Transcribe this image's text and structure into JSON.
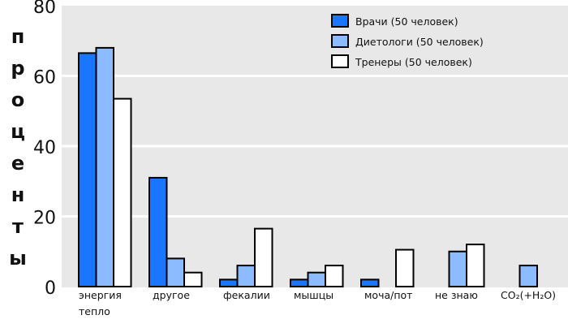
{
  "chart_data": {
    "type": "bar",
    "ylabel": "проценты",
    "ylim": [
      0,
      80
    ],
    "yticks": [
      0,
      20,
      40,
      60,
      80
    ],
    "grid": true,
    "legend_position": "top-right",
    "categories": [
      "энергия\nтепло",
      "другое",
      "фекалии",
      "мышцы",
      "моча/пот",
      "не знаю",
      "CO₂(+H₂O)"
    ],
    "series": [
      {
        "name": "Врачи (50 человек)",
        "color": "#1a75ff",
        "values": [
          66.5,
          31,
          2,
          2,
          2,
          0,
          0
        ]
      },
      {
        "name": "Диетологи (50 человек)",
        "color": "#8cbcff",
        "values": [
          68,
          8,
          6,
          4,
          0,
          10,
          6
        ]
      },
      {
        "name": "Тренеры (50 человек)",
        "color": "#ffffff",
        "values": [
          53.5,
          4,
          16.5,
          6,
          10.5,
          12,
          0
        ]
      }
    ],
    "background": "#e8e8e8"
  }
}
